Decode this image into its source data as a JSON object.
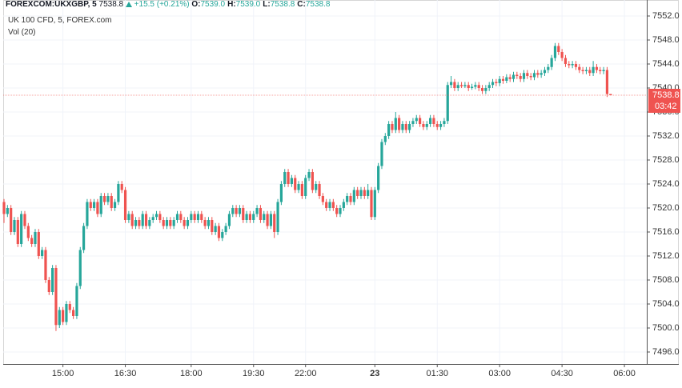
{
  "chart_data": {
    "type": "candlestick",
    "header": {
      "symbol": "FOREXCOM:UKXGBP, 5",
      "last": "7538.8",
      "change": "+15.5 (+0.21%)",
      "ohlc": [
        {
          "label": "O:",
          "value": "7539.0"
        },
        {
          "label": "H:",
          "value": "7539.0"
        },
        {
          "label": "L:",
          "value": "7538.8"
        },
        {
          "label": "C:",
          "value": "7538.8"
        }
      ]
    },
    "subtitle": "UK 100 CFD, 5, FOREX.com",
    "indicator": "Vol (20)",
    "last_price_label": "7538.8",
    "countdown": "03:42",
    "up_color": "#26a69a",
    "down_color": "#ef5350",
    "grid": true,
    "ylim": [
      7494,
      7554
    ],
    "yticks": [
      {
        "value": 7496,
        "label": "7496.0"
      },
      {
        "value": 7500,
        "label": "7500.0"
      },
      {
        "value": 7504,
        "label": "7504.0"
      },
      {
        "value": 7508,
        "label": "7508.0"
      },
      {
        "value": 7512,
        "label": "7512.0"
      },
      {
        "value": 7516,
        "label": "7516.0"
      },
      {
        "value": 7520,
        "label": "7520.0"
      },
      {
        "value": 7524,
        "label": "7524.0"
      },
      {
        "value": 7528,
        "label": "7528.0"
      },
      {
        "value": 7532,
        "label": "7532.0"
      },
      {
        "value": 7536,
        "label": "7536.0"
      },
      {
        "value": 7540,
        "label": "7540.0"
      },
      {
        "value": 7544,
        "label": "7544.0"
      },
      {
        "value": 7548,
        "label": "7548.0"
      },
      {
        "value": 7552,
        "label": "7552.0"
      }
    ],
    "categories": [
      null,
      null,
      null,
      null,
      null,
      null,
      null,
      null,
      null,
      null,
      null,
      null,
      null,
      null,
      null,
      null,
      null,
      "15:00",
      null,
      null,
      null,
      null,
      null,
      null,
      null,
      null,
      null,
      null,
      null,
      null,
      null,
      null,
      null,
      null,
      null,
      "16:30",
      null,
      null,
      null,
      null,
      null,
      null,
      null,
      null,
      null,
      null,
      null,
      null,
      null,
      null,
      null,
      null,
      null,
      null,
      "18:00",
      null,
      null,
      null,
      null,
      null,
      null,
      null,
      null,
      null,
      null,
      null,
      null,
      null,
      null,
      null,
      null,
      null,
      "19:30",
      null,
      null,
      null,
      null,
      null,
      null,
      null,
      null,
      null,
      null,
      null,
      null,
      null,
      null,
      "22:00",
      null,
      null,
      null,
      null,
      null,
      null,
      null,
      null,
      null,
      null,
      null,
      null,
      null,
      null,
      null,
      null,
      null,
      null,
      null,
      "23",
      null,
      null,
      null,
      null,
      null,
      null,
      null,
      null,
      null,
      null,
      null,
      null,
      null,
      null,
      null,
      null,
      null,
      "01:30",
      null,
      null,
      null,
      null,
      null,
      null,
      null,
      null,
      null,
      null,
      null,
      null,
      null,
      null,
      null,
      null,
      null,
      "03:00",
      null,
      null,
      null,
      null,
      null,
      null,
      null,
      null,
      null,
      null,
      null,
      null,
      null,
      null,
      null,
      null,
      null,
      "04:30",
      null,
      null,
      null,
      null,
      null,
      null,
      null,
      null,
      null,
      null,
      null,
      null,
      null,
      null,
      null,
      null,
      null,
      "06:00",
      null,
      null
    ],
    "candles": [
      [
        7521,
        7521.5,
        7517.5,
        7519
      ],
      [
        7519,
        7520.5,
        7518.5,
        7520
      ],
      [
        7520,
        7520.5,
        7515.5,
        7516
      ],
      [
        7516,
        7518.5,
        7515.5,
        7518
      ],
      [
        7518,
        7518.5,
        7513.5,
        7514
      ],
      [
        7514,
        7519.5,
        7513.5,
        7519
      ],
      [
        7519,
        7519.5,
        7516.5,
        7517
      ],
      [
        7517,
        7517.5,
        7514.5,
        7515
      ],
      [
        7515,
        7515.5,
        7513.5,
        7514
      ],
      [
        7514,
        7516.5,
        7513.5,
        7516
      ],
      [
        7516,
        7516.5,
        7511.5,
        7512
      ],
      [
        7512,
        7513.5,
        7511.5,
        7513
      ],
      [
        7513,
        7513.5,
        7507.5,
        7508
      ],
      [
        7508,
        7508.5,
        7505.5,
        7506
      ],
      [
        7506,
        7510.5,
        7505.5,
        7510
      ],
      [
        7510,
        7510.5,
        7499.5,
        7500.5
      ],
      [
        7500.5,
        7503.5,
        7500,
        7503
      ],
      [
        7503,
        7503.5,
        7500.5,
        7501
      ],
      [
        7501,
        7504.5,
        7500.5,
        7504
      ],
      [
        7504,
        7504.5,
        7502.5,
        7503
      ],
      [
        7503,
        7503.5,
        7501.5,
        7502
      ],
      [
        7502,
        7507.5,
        7501.5,
        7507
      ],
      [
        7507,
        7513.5,
        7506.5,
        7513
      ],
      [
        7513,
        7517.5,
        7512.5,
        7517
      ],
      [
        7517,
        7521.5,
        7516.5,
        7521
      ],
      [
        7521,
        7521.5,
        7519.5,
        7520
      ],
      [
        7520,
        7521.5,
        7519.5,
        7521
      ],
      [
        7521,
        7521.5,
        7518.5,
        7519
      ],
      [
        7519,
        7522.5,
        7518.5,
        7522
      ],
      [
        7522,
        7522.5,
        7520.5,
        7521
      ],
      [
        7521,
        7522.5,
        7520.5,
        7522
      ],
      [
        7522,
        7522.5,
        7519.5,
        7520
      ],
      [
        7520,
        7521.5,
        7519.5,
        7521
      ],
      [
        7521,
        7524.5,
        7520.5,
        7524
      ],
      [
        7524,
        7524.5,
        7522.5,
        7523
      ],
      [
        7523,
        7523.5,
        7517.5,
        7518
      ],
      [
        7518,
        7519.5,
        7517.5,
        7519
      ],
      [
        7519,
        7519.5,
        7516.5,
        7517
      ],
      [
        7517,
        7518.5,
        7516.5,
        7518
      ],
      [
        7518,
        7518.5,
        7516.5,
        7517
      ],
      [
        7517,
        7519.5,
        7516.5,
        7519
      ],
      [
        7519,
        7519.5,
        7516.5,
        7517
      ],
      [
        7517,
        7518.5,
        7516.5,
        7518
      ],
      [
        7518,
        7519,
        7517.5,
        7518.5
      ],
      [
        7518.5,
        7519.5,
        7518,
        7519
      ],
      [
        7519,
        7519.5,
        7517.5,
        7518
      ],
      [
        7518,
        7518.5,
        7516.5,
        7517
      ],
      [
        7517,
        7518.5,
        7516.5,
        7518
      ],
      [
        7518,
        7518.5,
        7516.5,
        7517
      ],
      [
        7517,
        7518.5,
        7516.5,
        7518
      ],
      [
        7518,
        7519.5,
        7517.5,
        7519
      ],
      [
        7519,
        7519.5,
        7517.5,
        7518
      ],
      [
        7518,
        7518.5,
        7516.5,
        7517
      ],
      [
        7517,
        7518.5,
        7516.5,
        7518
      ],
      [
        7518,
        7519.5,
        7517.5,
        7519
      ],
      [
        7519,
        7519.5,
        7517.5,
        7518
      ],
      [
        7518,
        7519.5,
        7517.5,
        7519
      ],
      [
        7519,
        7519.5,
        7517.5,
        7518
      ],
      [
        7518,
        7518.5,
        7516.5,
        7517
      ],
      [
        7517,
        7518.5,
        7516.5,
        7518
      ],
      [
        7518,
        7518.5,
        7515.5,
        7516
      ],
      [
        7516,
        7517.5,
        7515.5,
        7517
      ],
      [
        7517,
        7517.5,
        7514.5,
        7515
      ],
      [
        7515,
        7516.5,
        7514.5,
        7516
      ],
      [
        7516,
        7517.5,
        7515.5,
        7517
      ],
      [
        7517,
        7519.5,
        7516.5,
        7519
      ],
      [
        7519,
        7520.5,
        7518.5,
        7520
      ],
      [
        7520,
        7520.5,
        7518.5,
        7519
      ],
      [
        7519,
        7520.5,
        7518.5,
        7520
      ],
      [
        7520,
        7520.5,
        7517.5,
        7518
      ],
      [
        7518,
        7519.5,
        7517.5,
        7519
      ],
      [
        7519,
        7519.5,
        7517.5,
        7518
      ],
      [
        7518,
        7519.5,
        7517.5,
        7519
      ],
      [
        7519,
        7520.5,
        7518.5,
        7520
      ],
      [
        7520,
        7520.5,
        7517.5,
        7518
      ],
      [
        7518,
        7519.5,
        7517.5,
        7519
      ],
      [
        7519,
        7519.5,
        7516.5,
        7517
      ],
      [
        7517,
        7519.5,
        7516.5,
        7519
      ],
      [
        7519,
        7519.5,
        7515,
        7516
      ],
      [
        7516,
        7521.5,
        7515.5,
        7521
      ],
      [
        7521,
        7524.5,
        7520.5,
        7524
      ],
      [
        7524,
        7526.5,
        7523.5,
        7526
      ],
      [
        7526,
        7526.5,
        7523.5,
        7524
      ],
      [
        7524,
        7525.5,
        7523.5,
        7525
      ],
      [
        7525,
        7525.5,
        7522.5,
        7523
      ],
      [
        7523,
        7524.5,
        7522.5,
        7524
      ],
      [
        7524,
        7524.5,
        7521.5,
        7522
      ],
      [
        7522,
        7525.5,
        7521.5,
        7525
      ],
      [
        7525,
        7526.5,
        7524.5,
        7526
      ],
      [
        7526,
        7526.5,
        7522.5,
        7523
      ],
      [
        7523,
        7524.5,
        7522.5,
        7524
      ],
      [
        7524,
        7524.5,
        7521.5,
        7522
      ],
      [
        7522,
        7522.5,
        7520.5,
        7521
      ],
      [
        7521,
        7521.5,
        7519.5,
        7520
      ],
      [
        7520,
        7521.5,
        7519.5,
        7521
      ],
      [
        7521,
        7521.5,
        7519.5,
        7520
      ],
      [
        7520,
        7520.5,
        7518.5,
        7519
      ],
      [
        7519,
        7520.5,
        7518.5,
        7520
      ],
      [
        7520,
        7521.5,
        7519.5,
        7521
      ],
      [
        7521,
        7522.5,
        7520.5,
        7522
      ],
      [
        7522,
        7522.5,
        7520.5,
        7521
      ],
      [
        7521,
        7523.5,
        7520.5,
        7523
      ],
      [
        7523,
        7523.5,
        7521.5,
        7522
      ],
      [
        7522,
        7523.5,
        7521.5,
        7523
      ],
      [
        7523,
        7523.5,
        7521.5,
        7522
      ],
      [
        7522,
        7524,
        7521.5,
        7523
      ],
      [
        7523,
        7523.5,
        7518,
        7518.5
      ],
      [
        7518.5,
        7523.5,
        7518,
        7523
      ],
      [
        7523,
        7527.5,
        7522.5,
        7527
      ],
      [
        7527,
        7531.5,
        7526.5,
        7531
      ],
      [
        7531,
        7532.5,
        7530.5,
        7532
      ],
      [
        7532,
        7534.5,
        7531.5,
        7534
      ],
      [
        7534,
        7534.5,
        7532.5,
        7533
      ],
      [
        7533,
        7536,
        7532.5,
        7535
      ],
      [
        7535,
        7535.5,
        7532.5,
        7533
      ],
      [
        7533,
        7534.5,
        7532.5,
        7534
      ],
      [
        7534,
        7534.5,
        7532.5,
        7533
      ],
      [
        7533,
        7534.5,
        7532.5,
        7534
      ],
      [
        7534,
        7535,
        7533.5,
        7534.5
      ],
      [
        7534.5,
        7535.5,
        7534,
        7535
      ],
      [
        7535,
        7535.5,
        7533.5,
        7534
      ],
      [
        7534,
        7534.5,
        7533,
        7533.5
      ],
      [
        7533.5,
        7534.5,
        7533,
        7534
      ],
      [
        7534,
        7535.5,
        7533.5,
        7535
      ],
      [
        7535,
        7535.5,
        7533.5,
        7534
      ],
      [
        7534,
        7534.5,
        7533,
        7533.5
      ],
      [
        7533.5,
        7534.5,
        7533,
        7534
      ],
      [
        7534,
        7535,
        7533.5,
        7534.5
      ],
      [
        7534.5,
        7541,
        7534,
        7540.5
      ],
      [
        7540.5,
        7542,
        7540,
        7541
      ],
      [
        7541,
        7541.5,
        7539.5,
        7540
      ],
      [
        7540,
        7541,
        7539.5,
        7540.5
      ],
      [
        7540.5,
        7541,
        7540,
        7540.3
      ],
      [
        7540.3,
        7541,
        7540,
        7540.5
      ],
      [
        7540.5,
        7541,
        7539.5,
        7540
      ],
      [
        7540,
        7540.7,
        7539.7,
        7540.2
      ],
      [
        7540.2,
        7541,
        7539.8,
        7540.5
      ],
      [
        7540.5,
        7541,
        7539.5,
        7540
      ],
      [
        7540,
        7540.5,
        7539,
        7539.5
      ],
      [
        7539.5,
        7540.5,
        7539,
        7540
      ],
      [
        7540,
        7541,
        7539.5,
        7540.5
      ],
      [
        7540.5,
        7541.5,
        7540,
        7541
      ],
      [
        7541,
        7541.5,
        7540.3,
        7540.8
      ],
      [
        7540.8,
        7542,
        7540.3,
        7541.5
      ],
      [
        7541.5,
        7542,
        7540.7,
        7541.2
      ],
      [
        7541.2,
        7542.3,
        7540.8,
        7541.8
      ],
      [
        7541.8,
        7542.3,
        7541,
        7541.5
      ],
      [
        7541.5,
        7542.7,
        7541,
        7542.2
      ],
      [
        7542.2,
        7542.7,
        7541.5,
        7542
      ],
      [
        7542,
        7542.5,
        7541,
        7541.5
      ],
      [
        7541.5,
        7543,
        7541,
        7542.5
      ],
      [
        7542.5,
        7543,
        7541.5,
        7542
      ],
      [
        7542,
        7542.5,
        7541.3,
        7541.8
      ],
      [
        7541.8,
        7543,
        7541.3,
        7542.5
      ],
      [
        7542.5,
        7543,
        7541.7,
        7542.2
      ],
      [
        7542.2,
        7543,
        7541.7,
        7542.5
      ],
      [
        7542.5,
        7543.5,
        7542,
        7543
      ],
      [
        7543,
        7544,
        7542.5,
        7543.5
      ],
      [
        7543.5,
        7545.5,
        7543,
        7545
      ],
      [
        7545,
        7547.5,
        7544.5,
        7547
      ],
      [
        7547,
        7547.5,
        7545.5,
        7546
      ],
      [
        7546,
        7546.5,
        7544.5,
        7545
      ],
      [
        7545,
        7545.5,
        7543.5,
        7544
      ],
      [
        7544,
        7544.5,
        7543.3,
        7543.8
      ],
      [
        7543.8,
        7544.5,
        7543.3,
        7544
      ],
      [
        7544,
        7544.5,
        7543,
        7543.5
      ],
      [
        7543.5,
        7544,
        7542.5,
        7543
      ],
      [
        7543,
        7543.5,
        7542.3,
        7542.8
      ],
      [
        7542.8,
        7543.5,
        7542.3,
        7543
      ],
      [
        7543,
        7543.5,
        7542,
        7542.5
      ],
      [
        7542.5,
        7544.5,
        7542,
        7543.5
      ],
      [
        7543.5,
        7544,
        7542.5,
        7543
      ],
      [
        7543,
        7543.5,
        7542.3,
        7542.8
      ],
      [
        7542.8,
        7543.5,
        7542.3,
        7543
      ],
      [
        7543,
        7543.5,
        7538.5,
        7539
      ],
      [
        7539,
        7539,
        7538.8,
        7538.8
      ],
      null,
      null,
      null,
      null,
      null,
      null
    ]
  }
}
